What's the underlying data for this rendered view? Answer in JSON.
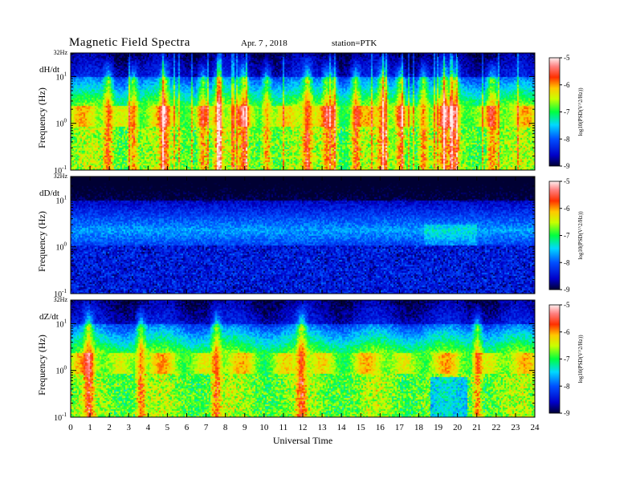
{
  "header": {
    "title": "Magnetic  Field  Spectra",
    "date": "Apr. 7  , 2018",
    "station": "station=PTK"
  },
  "chart_data": [
    {
      "type": "heatmap",
      "component": "dH/dt",
      "ylabel": "Frequency  (Hz)",
      "top_label": "32Hz",
      "ytick_labels": [
        "10",
        "10",
        "10"
      ],
      "ytick_exps": [
        "1",
        "0",
        "-1"
      ],
      "ytick_values": [
        10,
        1,
        0.1
      ],
      "ylim": [
        0.1,
        32
      ],
      "yscale": "log",
      "xlim": [
        0,
        24
      ],
      "colorbar": {
        "label": "log10(PSD(V^2/Hz))",
        "ticks": [
          "-5",
          "-6",
          "-7",
          "-8",
          "-9"
        ],
        "range": [
          -9,
          -5
        ]
      },
      "activity_hours": [
        1.9,
        3.2,
        4.8,
        6.8,
        7.6,
        8.9,
        10.1,
        12.2,
        13.2,
        13.5,
        14.7,
        16.1,
        17.0,
        18.2,
        19.3,
        19.8,
        21.7,
        21.8
      ]
    },
    {
      "type": "heatmap",
      "component": "dD/dt",
      "ylabel": "Frequency  (Hz)",
      "top_label": "32Hz",
      "ytick_labels": [
        "10",
        "10",
        "10"
      ],
      "ytick_exps": [
        "1",
        "0",
        "-1"
      ],
      "ytick_values": [
        10,
        1,
        0.1
      ],
      "ylim": [
        0.1,
        32
      ],
      "yscale": "log",
      "xlim": [
        0,
        24
      ],
      "colorbar": {
        "label": "log10(PSD(V^2/Hz))",
        "ticks": [
          "-5",
          "-6",
          "-7",
          "-8",
          "-9"
        ],
        "range": [
          -9,
          -5
        ]
      },
      "activity_hours": []
    },
    {
      "type": "heatmap",
      "component": "dZ/dt",
      "ylabel": "Frequency  (Hz)",
      "top_label": "32Hz",
      "ytick_labels": [
        "10",
        "10",
        "10"
      ],
      "ytick_exps": [
        "1",
        "0",
        "-1"
      ],
      "ytick_values": [
        10,
        1,
        0.1
      ],
      "ylim": [
        0.1,
        32
      ],
      "yscale": "log",
      "xlim": [
        0,
        24
      ],
      "colorbar": {
        "label": "log10(PSD(V^2/Hz))",
        "ticks": [
          "-5",
          "-6",
          "-7",
          "-8",
          "-9"
        ],
        "range": [
          -9,
          -5
        ]
      },
      "activity_hours": [
        0.9,
        3.6,
        7.5,
        11.9,
        21.0
      ]
    }
  ],
  "xaxis": {
    "label": "Universal Time",
    "ticks": [
      "0",
      "1",
      "2",
      "3",
      "4",
      "5",
      "6",
      "7",
      "8",
      "9",
      "10",
      "11",
      "12",
      "13",
      "14",
      "15",
      "16",
      "17",
      "18",
      "19",
      "20",
      "21",
      "22",
      "23",
      "24"
    ],
    "range": [
      0,
      24
    ]
  }
}
